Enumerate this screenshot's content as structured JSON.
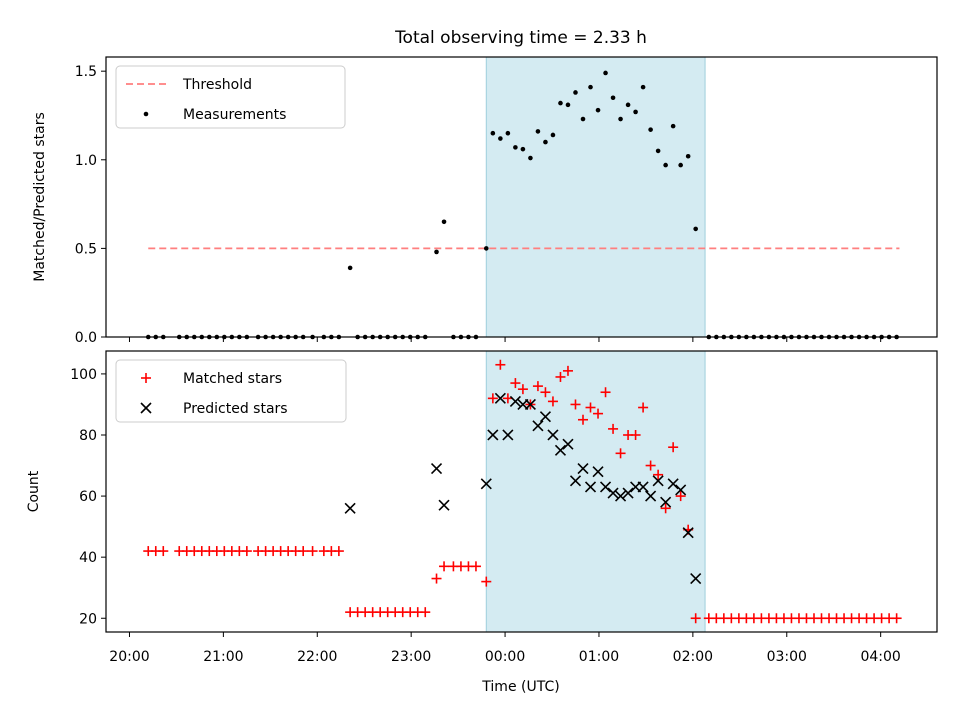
{
  "chart_data": {
    "title": "Total observing time = 2.33 h",
    "xlabel": "Time (UTC)",
    "x_ticks": [
      "20:00",
      "21:00",
      "22:00",
      "23:00",
      "00:00",
      "01:00",
      "02:00",
      "03:00",
      "04:00"
    ],
    "x_unit": "hours since 20:00 UTC",
    "xlim": [
      -0.25,
      8.6
    ],
    "observing_window": [
      3.8,
      6.13
    ],
    "panels": [
      {
        "type": "scatter",
        "ylabel": "Matched/Predicted stars",
        "ylim": [
          0,
          1.58
        ],
        "yticks": [
          "0.0",
          "0.5",
          "1.0",
          "1.5"
        ],
        "ytick_values": [
          0,
          0.5,
          1.0,
          1.5
        ],
        "legend_position": "top-left",
        "series": [
          {
            "name": "Threshold",
            "style": "dashed-line",
            "color": "#ff7f7f",
            "points": [
              [
                0.2,
                0.5
              ],
              [
                8.2,
                0.5
              ]
            ]
          },
          {
            "name": "Measurements",
            "style": "dot",
            "color": "#000000",
            "points": [
              [
                0.2,
                0
              ],
              [
                0.28,
                0
              ],
              [
                0.36,
                0
              ],
              [
                0.53,
                0
              ],
              [
                0.61,
                0
              ],
              [
                0.69,
                0
              ],
              [
                0.77,
                0
              ],
              [
                0.85,
                0
              ],
              [
                0.93,
                0
              ],
              [
                1.01,
                0
              ],
              [
                1.09,
                0
              ],
              [
                1.17,
                0
              ],
              [
                1.25,
                0
              ],
              [
                1.37,
                0
              ],
              [
                1.45,
                0
              ],
              [
                1.53,
                0
              ],
              [
                1.61,
                0
              ],
              [
                1.69,
                0
              ],
              [
                1.77,
                0
              ],
              [
                1.85,
                0
              ],
              [
                1.95,
                0
              ],
              [
                2.07,
                0
              ],
              [
                2.15,
                0
              ],
              [
                2.23,
                0
              ],
              [
                2.35,
                0.39
              ],
              [
                2.43,
                0
              ],
              [
                2.51,
                0
              ],
              [
                2.59,
                0
              ],
              [
                2.67,
                0
              ],
              [
                2.75,
                0
              ],
              [
                2.83,
                0
              ],
              [
                2.91,
                0
              ],
              [
                2.99,
                0
              ],
              [
                3.07,
                0
              ],
              [
                3.15,
                0
              ],
              [
                3.27,
                0.48
              ],
              [
                3.35,
                0.65
              ],
              [
                3.45,
                0
              ],
              [
                3.53,
                0
              ],
              [
                3.61,
                0
              ],
              [
                3.69,
                0
              ],
              [
                3.8,
                0.5
              ],
              [
                3.87,
                1.15
              ],
              [
                3.95,
                1.12
              ],
              [
                4.03,
                1.15
              ],
              [
                4.11,
                1.07
              ],
              [
                4.19,
                1.06
              ],
              [
                4.27,
                1.01
              ],
              [
                4.35,
                1.16
              ],
              [
                4.43,
                1.1
              ],
              [
                4.51,
                1.14
              ],
              [
                4.59,
                1.32
              ],
              [
                4.67,
                1.31
              ],
              [
                4.75,
                1.38
              ],
              [
                4.83,
                1.23
              ],
              [
                4.91,
                1.41
              ],
              [
                4.99,
                1.28
              ],
              [
                5.07,
                1.49
              ],
              [
                5.15,
                1.35
              ],
              [
                5.23,
                1.23
              ],
              [
                5.31,
                1.31
              ],
              [
                5.39,
                1.27
              ],
              [
                5.47,
                1.41
              ],
              [
                5.55,
                1.17
              ],
              [
                5.63,
                1.05
              ],
              [
                5.71,
                0.97
              ],
              [
                5.79,
                1.19
              ],
              [
                5.87,
                0.97
              ],
              [
                5.95,
                1.02
              ],
              [
                6.03,
                0.61
              ],
              [
                6.17,
                0
              ],
              [
                6.25,
                0
              ],
              [
                6.33,
                0
              ],
              [
                6.41,
                0
              ],
              [
                6.49,
                0
              ],
              [
                6.57,
                0
              ],
              [
                6.65,
                0
              ],
              [
                6.73,
                0
              ],
              [
                6.81,
                0
              ],
              [
                6.89,
                0
              ],
              [
                6.97,
                0
              ],
              [
                7.05,
                0
              ],
              [
                7.13,
                0
              ],
              [
                7.21,
                0
              ],
              [
                7.29,
                0
              ],
              [
                7.37,
                0
              ],
              [
                7.45,
                0
              ],
              [
                7.53,
                0
              ],
              [
                7.61,
                0
              ],
              [
                7.69,
                0
              ],
              [
                7.77,
                0
              ],
              [
                7.85,
                0
              ],
              [
                7.93,
                0
              ],
              [
                8.01,
                0
              ],
              [
                8.09,
                0
              ],
              [
                8.17,
                0
              ]
            ]
          }
        ]
      },
      {
        "type": "scatter",
        "ylabel": "Count",
        "ylim": [
          15.5,
          107.5
        ],
        "yticks": [
          "20",
          "40",
          "60",
          "80",
          "100"
        ],
        "ytick_values": [
          20,
          40,
          60,
          80,
          100
        ],
        "legend_position": "top-left",
        "series": [
          {
            "name": "Matched stars",
            "style": "plus",
            "color": "#ff0000",
            "points": [
              [
                0.2,
                42
              ],
              [
                0.28,
                42
              ],
              [
                0.36,
                42
              ],
              [
                0.53,
                42
              ],
              [
                0.61,
                42
              ],
              [
                0.69,
                42
              ],
              [
                0.77,
                42
              ],
              [
                0.85,
                42
              ],
              [
                0.93,
                42
              ],
              [
                1.01,
                42
              ],
              [
                1.09,
                42
              ],
              [
                1.17,
                42
              ],
              [
                1.25,
                42
              ],
              [
                1.37,
                42
              ],
              [
                1.45,
                42
              ],
              [
                1.53,
                42
              ],
              [
                1.61,
                42
              ],
              [
                1.69,
                42
              ],
              [
                1.77,
                42
              ],
              [
                1.85,
                42
              ],
              [
                1.95,
                42
              ],
              [
                2.07,
                42
              ],
              [
                2.15,
                42
              ],
              [
                2.23,
                42
              ],
              [
                2.35,
                22
              ],
              [
                2.43,
                22
              ],
              [
                2.51,
                22
              ],
              [
                2.59,
                22
              ],
              [
                2.67,
                22
              ],
              [
                2.75,
                22
              ],
              [
                2.83,
                22
              ],
              [
                2.91,
                22
              ],
              [
                2.99,
                22
              ],
              [
                3.07,
                22
              ],
              [
                3.15,
                22
              ],
              [
                3.27,
                33
              ],
              [
                3.35,
                37
              ],
              [
                3.45,
                37
              ],
              [
                3.53,
                37
              ],
              [
                3.61,
                37
              ],
              [
                3.69,
                37
              ],
              [
                3.8,
                32
              ],
              [
                3.87,
                92
              ],
              [
                3.95,
                103
              ],
              [
                4.03,
                92
              ],
              [
                4.11,
                97
              ],
              [
                4.19,
                95
              ],
              [
                4.27,
                90
              ],
              [
                4.35,
                96
              ],
              [
                4.43,
                94
              ],
              [
                4.51,
                91
              ],
              [
                4.59,
                99
              ],
              [
                4.67,
                101
              ],
              [
                4.75,
                90
              ],
              [
                4.83,
                85
              ],
              [
                4.91,
                89
              ],
              [
                4.99,
                87
              ],
              [
                5.07,
                94
              ],
              [
                5.15,
                82
              ],
              [
                5.23,
                74
              ],
              [
                5.31,
                80
              ],
              [
                5.39,
                80
              ],
              [
                5.47,
                89
              ],
              [
                5.55,
                70
              ],
              [
                5.63,
                67
              ],
              [
                5.71,
                56
              ],
              [
                5.79,
                76
              ],
              [
                5.87,
                60
              ],
              [
                5.95,
                49
              ],
              [
                6.03,
                20
              ],
              [
                6.17,
                20
              ],
              [
                6.25,
                20
              ],
              [
                6.33,
                20
              ],
              [
                6.41,
                20
              ],
              [
                6.49,
                20
              ],
              [
                6.57,
                20
              ],
              [
                6.65,
                20
              ],
              [
                6.73,
                20
              ],
              [
                6.81,
                20
              ],
              [
                6.89,
                20
              ],
              [
                6.97,
                20
              ],
              [
                7.05,
                20
              ],
              [
                7.13,
                20
              ],
              [
                7.21,
                20
              ],
              [
                7.29,
                20
              ],
              [
                7.37,
                20
              ],
              [
                7.45,
                20
              ],
              [
                7.53,
                20
              ],
              [
                7.61,
                20
              ],
              [
                7.69,
                20
              ],
              [
                7.77,
                20
              ],
              [
                7.85,
                20
              ],
              [
                7.93,
                20
              ],
              [
                8.01,
                20
              ],
              [
                8.09,
                20
              ],
              [
                8.17,
                20
              ]
            ]
          },
          {
            "name": "Predicted stars",
            "style": "x",
            "color": "#000000",
            "points": [
              [
                2.35,
                56
              ],
              [
                3.27,
                69
              ],
              [
                3.35,
                57
              ],
              [
                3.8,
                64
              ],
              [
                3.87,
                80
              ],
              [
                3.95,
                92
              ],
              [
                4.03,
                80
              ],
              [
                4.11,
                91
              ],
              [
                4.19,
                90
              ],
              [
                4.27,
                90
              ],
              [
                4.35,
                83
              ],
              [
                4.43,
                86
              ],
              [
                4.51,
                80
              ],
              [
                4.59,
                75
              ],
              [
                4.67,
                77
              ],
              [
                4.75,
                65
              ],
              [
                4.83,
                69
              ],
              [
                4.91,
                63
              ],
              [
                4.99,
                68
              ],
              [
                5.07,
                63
              ],
              [
                5.15,
                61
              ],
              [
                5.23,
                60
              ],
              [
                5.31,
                61
              ],
              [
                5.39,
                63
              ],
              [
                5.47,
                63
              ],
              [
                5.55,
                60
              ],
              [
                5.63,
                65
              ],
              [
                5.71,
                58
              ],
              [
                5.79,
                64
              ],
              [
                5.87,
                62
              ],
              [
                5.95,
                48
              ],
              [
                6.03,
                33
              ]
            ]
          }
        ]
      }
    ]
  }
}
